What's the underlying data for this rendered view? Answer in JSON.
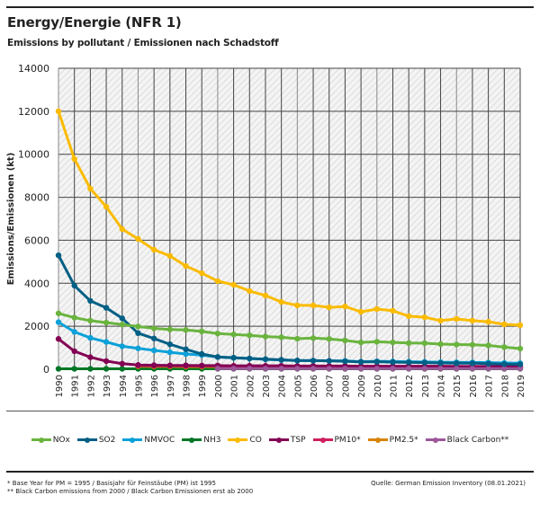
{
  "header": {
    "title": "Energy/Energie (NFR 1)",
    "subtitle": "Emissions by pollutant / Emissionen nach Schadstoff"
  },
  "footer": {
    "note1": "* Base Year for PM = 1995 / Basisjahr für Feinstäube (PM) ist 1995",
    "note2": "** Black Carbon emissions from 2000 / Black Carbon Emissionen erst ab 2000",
    "source": "Quelle: German Emission Inventory (08.01.2021)"
  },
  "chart_data": {
    "type": "line",
    "title": "Energy/Energie (NFR 1)",
    "subtitle": "Emissions by pollutant / Emissionen nach Schadstoff",
    "xlabel": "",
    "ylabel": "Emissions/Emissionen (kt)",
    "ylim": [
      0,
      14000
    ],
    "yticks": [
      0,
      2000,
      4000,
      6000,
      8000,
      10000,
      12000,
      14000
    ],
    "grid": true,
    "legend_position": "bottom",
    "x": [
      1990,
      1991,
      1992,
      1993,
      1994,
      1995,
      1996,
      1997,
      1998,
      1999,
      2000,
      2001,
      2002,
      2003,
      2004,
      2005,
      2006,
      2007,
      2008,
      2009,
      2010,
      2011,
      2012,
      2013,
      2014,
      2015,
      2016,
      2017,
      2018,
      2019
    ],
    "series": [
      {
        "name": "NOx",
        "color": "#6ab43e",
        "values": [
          2600,
          2400,
          2260,
          2170,
          2080,
          1990,
          1900,
          1850,
          1830,
          1760,
          1660,
          1620,
          1580,
          1520,
          1490,
          1420,
          1450,
          1410,
          1340,
          1250,
          1280,
          1250,
          1220,
          1210,
          1170,
          1150,
          1140,
          1110,
          1030,
          960
        ]
      },
      {
        "name": "SO2",
        "color": "#005f85",
        "values": [
          5300,
          3890,
          3180,
          2860,
          2370,
          1680,
          1430,
          1160,
          930,
          710,
          570,
          540,
          500,
          470,
          440,
          410,
          400,
          390,
          370,
          340,
          350,
          330,
          320,
          310,
          290,
          280,
          280,
          260,
          240,
          230
        ]
      },
      {
        "name": "NMVOC",
        "color": "#0ba1d9",
        "values": [
          2190,
          1740,
          1460,
          1270,
          1070,
          970,
          880,
          790,
          710,
          660,
          570,
          530,
          500,
          460,
          430,
          400,
          400,
          390,
          390,
          350,
          370,
          360,
          350,
          340,
          330,
          320,
          320,
          310,
          290,
          280
        ]
      },
      {
        "name": "NH3",
        "color": "#007626",
        "values": [
          20,
          20,
          20,
          20,
          20,
          20,
          20,
          20,
          20,
          20,
          20,
          20,
          20,
          20,
          20,
          20,
          20,
          20,
          20,
          20,
          20,
          20,
          20,
          20,
          20,
          20,
          20,
          20,
          20,
          20
        ]
      },
      {
        "name": "CO",
        "color": "#fabb00",
        "values": [
          12000,
          9780,
          8400,
          7560,
          6520,
          6060,
          5560,
          5270,
          4800,
          4470,
          4100,
          3930,
          3640,
          3430,
          3130,
          2970,
          2970,
          2880,
          2920,
          2670,
          2800,
          2720,
          2470,
          2420,
          2260,
          2340,
          2260,
          2210,
          2090,
          2050
        ]
      },
      {
        "name": "TSP",
        "color": "#830053",
        "values": [
          1410,
          840,
          560,
          380,
          260,
          200,
          190,
          180,
          180,
          170,
          170,
          160,
          160,
          160,
          160,
          150,
          150,
          150,
          150,
          140,
          140,
          140,
          140,
          140,
          140,
          130,
          130,
          130,
          130,
          130
        ]
      },
      {
        "name": "PM10*",
        "color": "#ce1f5e",
        "values": [
          null,
          null,
          null,
          null,
          null,
          170,
          160,
          160,
          150,
          150,
          150,
          140,
          140,
          140,
          140,
          130,
          130,
          130,
          130,
          120,
          120,
          120,
          120,
          120,
          120,
          110,
          110,
          110,
          110,
          110
        ]
      },
      {
        "name": "PM2.5*",
        "color": "#d78400",
        "values": [
          null,
          null,
          null,
          null,
          null,
          140,
          130,
          130,
          120,
          120,
          120,
          110,
          110,
          110,
          110,
          100,
          100,
          100,
          100,
          90,
          90,
          90,
          90,
          90,
          90,
          90,
          90,
          90,
          80,
          80
        ]
      },
      {
        "name": "Black Carbon**",
        "color": "#9d579a",
        "values": [
          null,
          null,
          null,
          null,
          null,
          null,
          null,
          null,
          null,
          null,
          30,
          30,
          30,
          30,
          30,
          30,
          30,
          30,
          30,
          30,
          30,
          30,
          30,
          30,
          30,
          30,
          30,
          30,
          30,
          30
        ]
      }
    ]
  }
}
